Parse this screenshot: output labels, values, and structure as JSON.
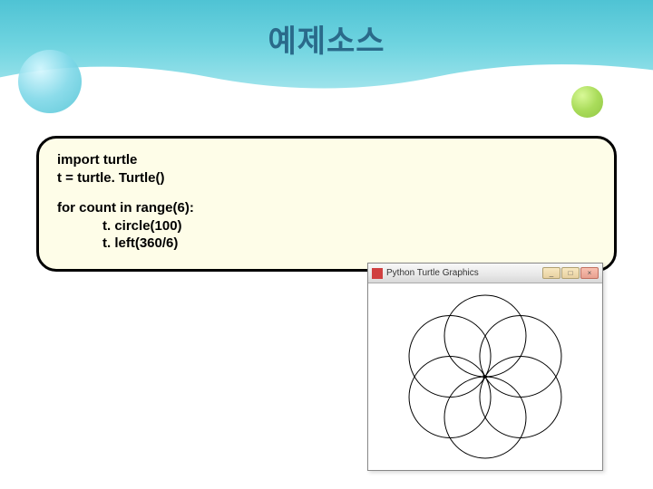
{
  "slide": {
    "title": "예제소스",
    "background_gradient": [
      "#4fc3d4",
      "#a0e4ec"
    ],
    "bubble_left_color": "#7fd8e8",
    "bubble_right_color": "#a0d848"
  },
  "code_box": {
    "background_color": "#fefde8",
    "border_color": "#000000",
    "border_width": 3,
    "border_radius": 22,
    "font_size": 15,
    "lines_block1": [
      "import turtle",
      "t = turtle. Turtle()"
    ],
    "lines_block2": [
      "for count in range(6):",
      "            t. circle(100)",
      "            t. left(360/6)"
    ]
  },
  "output_window": {
    "title": "Python Turtle Graphics",
    "titlebar_bg": "#e8e8e8",
    "button_min": "_",
    "button_max": "□",
    "button_close": "×",
    "canvas_bg": "#ffffff",
    "turtle_drawing": {
      "type": "flower-of-circles",
      "num_circles": 6,
      "circle_radius": 45,
      "rotation_step_deg": 60,
      "stroke_color": "#000000",
      "stroke_width": 1,
      "center_marker_color": "#000000",
      "center_marker_size": 4
    }
  }
}
